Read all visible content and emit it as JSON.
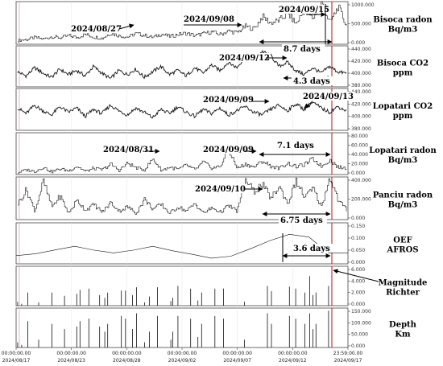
{
  "chart_data": {
    "type": "multi-panel time series",
    "x_range": [
      "2024/08/17 00:00:00.00",
      "2024/09/17 23:59:00.00"
    ],
    "x_ticks": [
      {
        "time": "00:00:00.00",
        "date": "2024/08/17"
      },
      {
        "time": "00:00:00.00",
        "date": "2024/08/23"
      },
      {
        "time": "00:00:00.00",
        "date": "2024/08/28"
      },
      {
        "time": "00:00:00.00",
        "date": "2024/09/02"
      },
      {
        "time": "00:00:00.00",
        "date": "2024/09/07"
      },
      {
        "time": "00:00:00.00",
        "date": "2024/09/12"
      },
      {
        "time": "23:59:00.00",
        "date": "2024/09/17"
      }
    ],
    "panels": [
      {
        "id": "bisoca-radon",
        "type": "line",
        "label": [
          "Bisoca radon",
          "Bq/m3"
        ],
        "ylim": [
          0,
          1000000
        ],
        "yticks": [
          "1000.000",
          "500.000",
          "0.000"
        ],
        "values": [
          90000,
          110000,
          160000,
          120000,
          180000,
          150000,
          200000,
          160000,
          230000,
          170000,
          140000,
          260000,
          200000,
          170000,
          250000,
          210000,
          160000,
          240000,
          180000,
          230000,
          260000,
          200000,
          250000,
          290000,
          230000,
          310000,
          270000,
          420000,
          360000,
          650000,
          500000,
          560000,
          720000,
          480000,
          810000,
          600000,
          980000,
          500000,
          880000,
          420000
        ],
        "annotations": [
          "2024/08/27",
          "2024/09/08",
          "2024/09/15",
          "8.7 days"
        ]
      },
      {
        "id": "bisoca-co2",
        "type": "line",
        "label": [
          "Bisoca CO2",
          "ppm"
        ],
        "ylim": [
          380000,
          440000
        ],
        "yticks": [
          "440.000",
          "420.000",
          "400.000",
          "380.000"
        ],
        "values": [
          402000,
          396000,
          408000,
          400000,
          394000,
          406000,
          398000,
          404000,
          396000,
          410000,
          400000,
          392000,
          404000,
          398000,
          406000,
          394000,
          402000,
          410000,
          398000,
          404000,
          396000,
          408000,
          400000,
          412000,
          404000,
          416000,
          408000,
          424000,
          420000,
          432000,
          426000,
          410000,
          416000,
          404000,
          398000,
          408000,
          400000,
          410000,
          402000,
          400000
        ],
        "annotations": [
          "2024/09/12",
          "4.3 days"
        ]
      },
      {
        "id": "lopatari-co2",
        "type": "line",
        "label": [
          "Lopatari CO2",
          "ppm"
        ],
        "ylim": [
          380000,
          440000
        ],
        "yticks": [
          "440.000",
          "420.000",
          "400.000",
          "380.000"
        ],
        "values": [
          412000,
          404000,
          416000,
          408000,
          402000,
          414000,
          406000,
          412000,
          400000,
          410000,
          404000,
          416000,
          408000,
          402000,
          412000,
          406000,
          398000,
          410000,
          404000,
          414000,
          406000,
          400000,
          410000,
          404000,
          412000,
          402000,
          408000,
          414000,
          406000,
          402000,
          410000,
          416000,
          408000,
          418000,
          410000,
          420000,
          412000,
          406000,
          414000,
          408000
        ],
        "annotations": [
          "2024/09/09",
          "2024/09/13"
        ]
      },
      {
        "id": "lopatari-radon",
        "type": "line",
        "label": [
          "Lopatari radon",
          "Bq/m3"
        ],
        "ylim": [
          0,
          80000
        ],
        "yticks": [
          "80.000",
          "60.000",
          "40.000",
          "20.000",
          "0.000"
        ],
        "values": [
          4000,
          9000,
          6000,
          14000,
          5000,
          11000,
          7000,
          16000,
          6000,
          12000,
          9000,
          20000,
          8000,
          22000,
          13000,
          9000,
          30000,
          8000,
          14000,
          10000,
          18000,
          9000,
          24000,
          12000,
          16000,
          48000,
          12000,
          20000,
          14000,
          26000,
          16000,
          12000,
          22000,
          15000,
          19000,
          30000,
          16000,
          28000,
          14000,
          12000
        ],
        "annotations": [
          "2024/08/31",
          "2024/09/09",
          "7.1 days"
        ]
      },
      {
        "id": "panciu-radon",
        "type": "line",
        "label": [
          "Panciu radon",
          "Bq/m3"
        ],
        "ylim": [
          0,
          400000
        ],
        "yticks": [
          "400.000",
          "200.000",
          "0.000"
        ],
        "values": [
          150000,
          280000,
          80000,
          360000,
          120000,
          220000,
          60000,
          180000,
          90000,
          140000,
          70000,
          160000,
          80000,
          120000,
          60000,
          190000,
          100000,
          140000,
          60000,
          120000,
          80000,
          150000,
          60000,
          110000,
          70000,
          130000,
          80000,
          370000,
          260000,
          330000,
          200000,
          310000,
          150000,
          360000,
          210000,
          290000,
          120000,
          400000,
          180000,
          90000
        ],
        "annotations": [
          "2024/09/10",
          "6.75 days"
        ]
      },
      {
        "id": "oef-afros",
        "type": "line",
        "label": [
          "OEF",
          "AFROS"
        ],
        "ylim": [
          0,
          0.15
        ],
        "yticks": [
          "0.150",
          "0.100",
          "0.050",
          "0.000"
        ],
        "values": [
          0.03,
          0.037,
          0.051,
          0.064,
          0.05,
          0.04,
          0.05,
          0.064,
          0.048,
          0.035,
          0.021,
          0.028,
          0.055,
          0.085,
          0.108,
          0.098,
          0.04,
          0.04
        ],
        "annotations": [
          "3.6 days"
        ]
      },
      {
        "id": "magnitude",
        "type": "bar",
        "label": [
          "Magnitude",
          "Richter"
        ],
        "ylim": [
          0,
          6
        ],
        "yticks": [
          "6.000",
          "4.000",
          "2.000",
          "0.000"
        ],
        "values": [
          0.6,
          0.3,
          2.0,
          0.0,
          0.0,
          0.5,
          0.0,
          0.0,
          2.0,
          0.0,
          0.0,
          1.5,
          0.0,
          0.0,
          1.8,
          2.4,
          0.0,
          2.6,
          0.0,
          0.0,
          1.6,
          1.2,
          2.0,
          0.0,
          0.0,
          2.3,
          2.3,
          0.0,
          1.6,
          2.8,
          0.0,
          0.5,
          1.4,
          0.0,
          2.8,
          0.0,
          0.0,
          0.7,
          1.2,
          3.0,
          0.0,
          0.0,
          2.6,
          0.0,
          0.8,
          2.0,
          0.0,
          0.0,
          2.6,
          0.0,
          2.6,
          0.0,
          0.0,
          0.0,
          0.0,
          0.6,
          0.0,
          0.0,
          0.0,
          0.0,
          0.0,
          3.0,
          2.2,
          0.0,
          0.0,
          0.0,
          2.9,
          0.0,
          2.6,
          0.0,
          2.0,
          4.5,
          1.6,
          2.0,
          0.0,
          0.0,
          3.0,
          0.0,
          0.0,
          0.0
        ],
        "annotations": []
      },
      {
        "id": "depth",
        "type": "bar",
        "label": [
          "Depth",
          "Km"
        ],
        "ylim": [
          0,
          150000
        ],
        "yticks": [
          "150.000",
          "100.000",
          "50.000",
          "0.000"
        ],
        "values": [
          20000,
          10000,
          100000,
          0,
          0,
          30000,
          0,
          0,
          90000,
          0,
          0,
          70000,
          0,
          0,
          80000,
          100000,
          0,
          110000,
          0,
          0,
          80000,
          60000,
          90000,
          0,
          0,
          120000,
          110000,
          0,
          70000,
          130000,
          0,
          20000,
          60000,
          0,
          120000,
          0,
          0,
          30000,
          60000,
          120000,
          0,
          0,
          110000,
          0,
          40000,
          90000,
          0,
          0,
          120000,
          0,
          110000,
          0,
          0,
          0,
          0,
          30000,
          0,
          0,
          0,
          0,
          0,
          130000,
          90000,
          0,
          0,
          0,
          120000,
          0,
          110000,
          0,
          90000,
          130000,
          70000,
          90000,
          0,
          0,
          140000,
          0,
          0,
          0
        ],
        "annotations": []
      }
    ]
  }
}
